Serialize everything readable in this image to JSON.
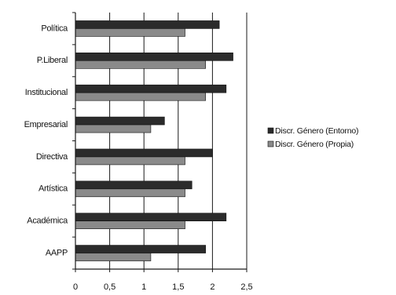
{
  "chart_data": {
    "type": "bar",
    "orientation": "horizontal",
    "categories": [
      "Política",
      "P.Liberal",
      "Institucional",
      "Empresarial",
      "Directiva",
      "Artística",
      "Académica",
      "AAPP"
    ],
    "series": [
      {
        "name": "Discr. Género (Entorno)",
        "color": "#2b2b2b",
        "values": [
          2.1,
          2.3,
          2.2,
          1.3,
          2.0,
          1.7,
          2.2,
          1.9
        ]
      },
      {
        "name": "Discr. Género (Propia)",
        "color": "#8a8a8a",
        "values": [
          1.6,
          1.9,
          1.9,
          1.1,
          1.6,
          1.6,
          1.6,
          1.1
        ]
      }
    ],
    "xticks": [
      "0",
      "0,5",
      "1",
      "1,5",
      "2",
      "2,5"
    ],
    "xlim": [
      0,
      2.5
    ],
    "grid": "vertical",
    "legend_position": "right"
  }
}
